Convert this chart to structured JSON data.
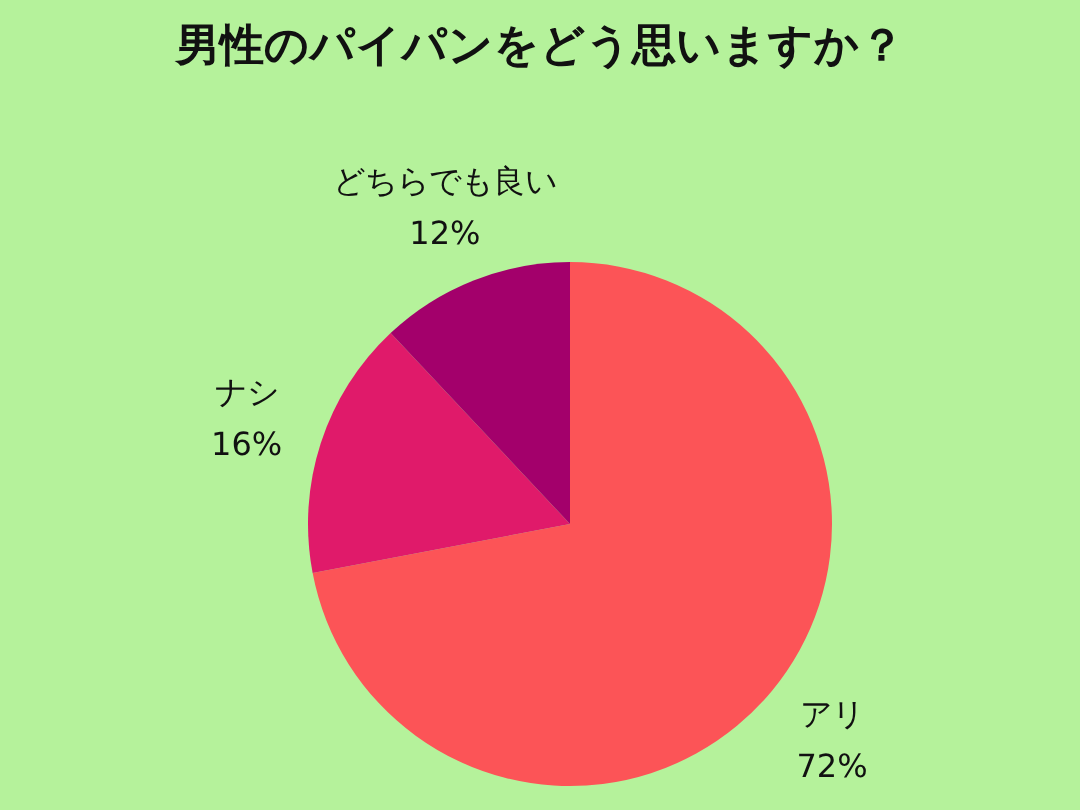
{
  "chart_data": {
    "type": "pie",
    "title": "男性のパイパンをどう思いますか？",
    "categories": [
      "アリ",
      "ナシ",
      "どちらでも良い"
    ],
    "values": [
      72,
      16,
      12
    ],
    "colors": [
      "#fc5457",
      "#e01a6a",
      "#a3006b"
    ],
    "value_labels": [
      "72%",
      "16%",
      "12%"
    ]
  }
}
